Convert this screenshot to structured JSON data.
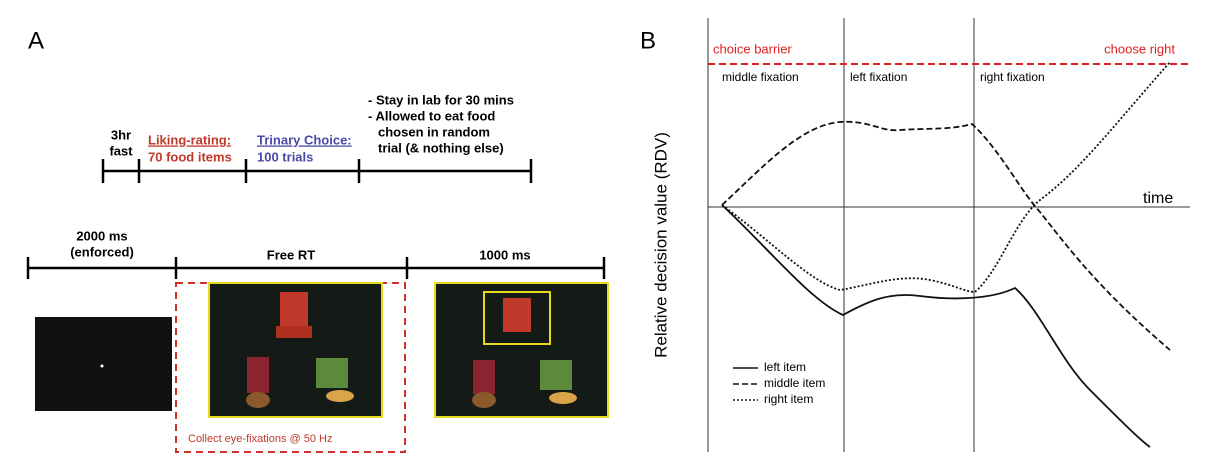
{
  "panel_a": {
    "label": "A",
    "timeline": {
      "fast": [
        "3hr",
        "fast"
      ],
      "liking": {
        "title": "Liking-rating:",
        "detail": "70 food items"
      },
      "choice": {
        "title": "Trinary Choice:",
        "detail": "100 trials"
      },
      "after": [
        "- Stay in lab for 30 mins",
        "- Allowed to eat food",
        "chosen in random",
        "trial (& nothing else)"
      ]
    },
    "trial": {
      "phases": [
        [
          "2000 ms",
          "(enforced)"
        ],
        [
          "Free RT"
        ],
        [
          "1000 ms"
        ]
      ],
      "note": "Collect eye-fixations @ 50 Hz"
    }
  },
  "panel_b": {
    "label": "B",
    "barrier_left": "choice barrier",
    "barrier_right": "choose right",
    "fixations": [
      "middle fixation",
      "left fixation",
      "right fixation"
    ],
    "x_label": "time",
    "y_label": "Relative decision value (RDV)",
    "legend": [
      "left item",
      "middle item",
      "right item"
    ]
  }
}
